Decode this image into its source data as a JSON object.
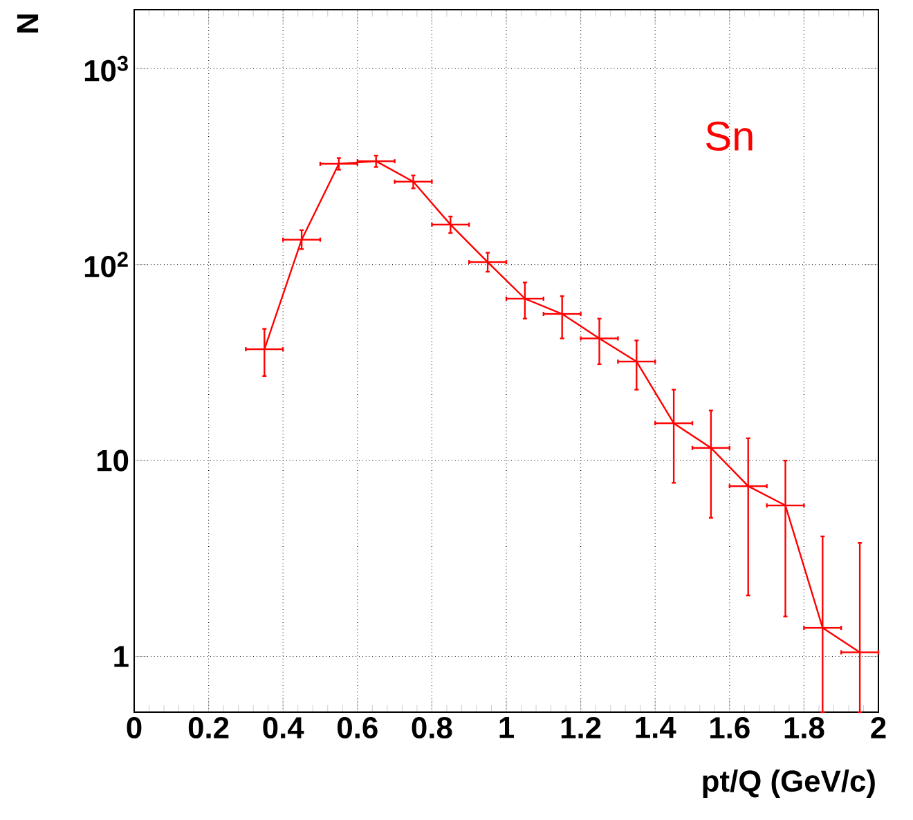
{
  "chart_data": {
    "type": "line",
    "xlabel": "pt/Q (GeV/c)",
    "ylabel": "N",
    "x": [
      0.35,
      0.45,
      0.55,
      0.65,
      0.75,
      0.85,
      0.95,
      1.05,
      1.15,
      1.25,
      1.35,
      1.45,
      1.55,
      1.65,
      1.75,
      1.85,
      1.95
    ],
    "series": [
      {
        "name": "Sn",
        "color": "#ff0000",
        "values": [
          37,
          134,
          327,
          337,
          265,
          160,
          103,
          67,
          56,
          42,
          32,
          15.5,
          11.6,
          7.4,
          5.9,
          1.4,
          1.05
        ],
        "errors": [
          [
            27,
            47
          ],
          [
            120,
            150
          ],
          [
            305,
            350
          ],
          [
            315,
            360
          ],
          [
            245,
            285
          ],
          [
            145,
            176
          ],
          [
            92,
            115
          ],
          [
            53,
            81
          ],
          [
            42,
            69
          ],
          [
            31,
            53
          ],
          [
            23,
            41
          ],
          [
            7.7,
            23
          ],
          [
            5.1,
            18
          ],
          [
            2.05,
            13
          ],
          [
            1.6,
            10
          ],
          [
            0.52,
            4.1
          ],
          [
            0.52,
            3.8
          ]
        ],
        "xerrors": [
          0.05,
          0.05,
          0.05,
          0.05,
          0.05,
          0.05,
          0.05,
          0.05,
          0.05,
          0.05,
          0.05,
          0.05,
          0.05,
          0.05,
          0.05,
          0.05,
          0.05
        ]
      }
    ],
    "xlim": [
      0,
      2
    ],
    "ylim": [
      0.52,
      2000
    ],
    "log": "y",
    "xticks": [
      0,
      0.2,
      0.4,
      0.6,
      0.8,
      1,
      1.2,
      1.4,
      1.6,
      1.8,
      2
    ],
    "yticks": [
      1,
      10,
      {
        "value": 100,
        "label": "10$^{2}$"
      },
      {
        "value": 1000,
        "label": "10$^{3}$"
      }
    ],
    "grid": true,
    "marker": "none",
    "line_style": "solid"
  }
}
